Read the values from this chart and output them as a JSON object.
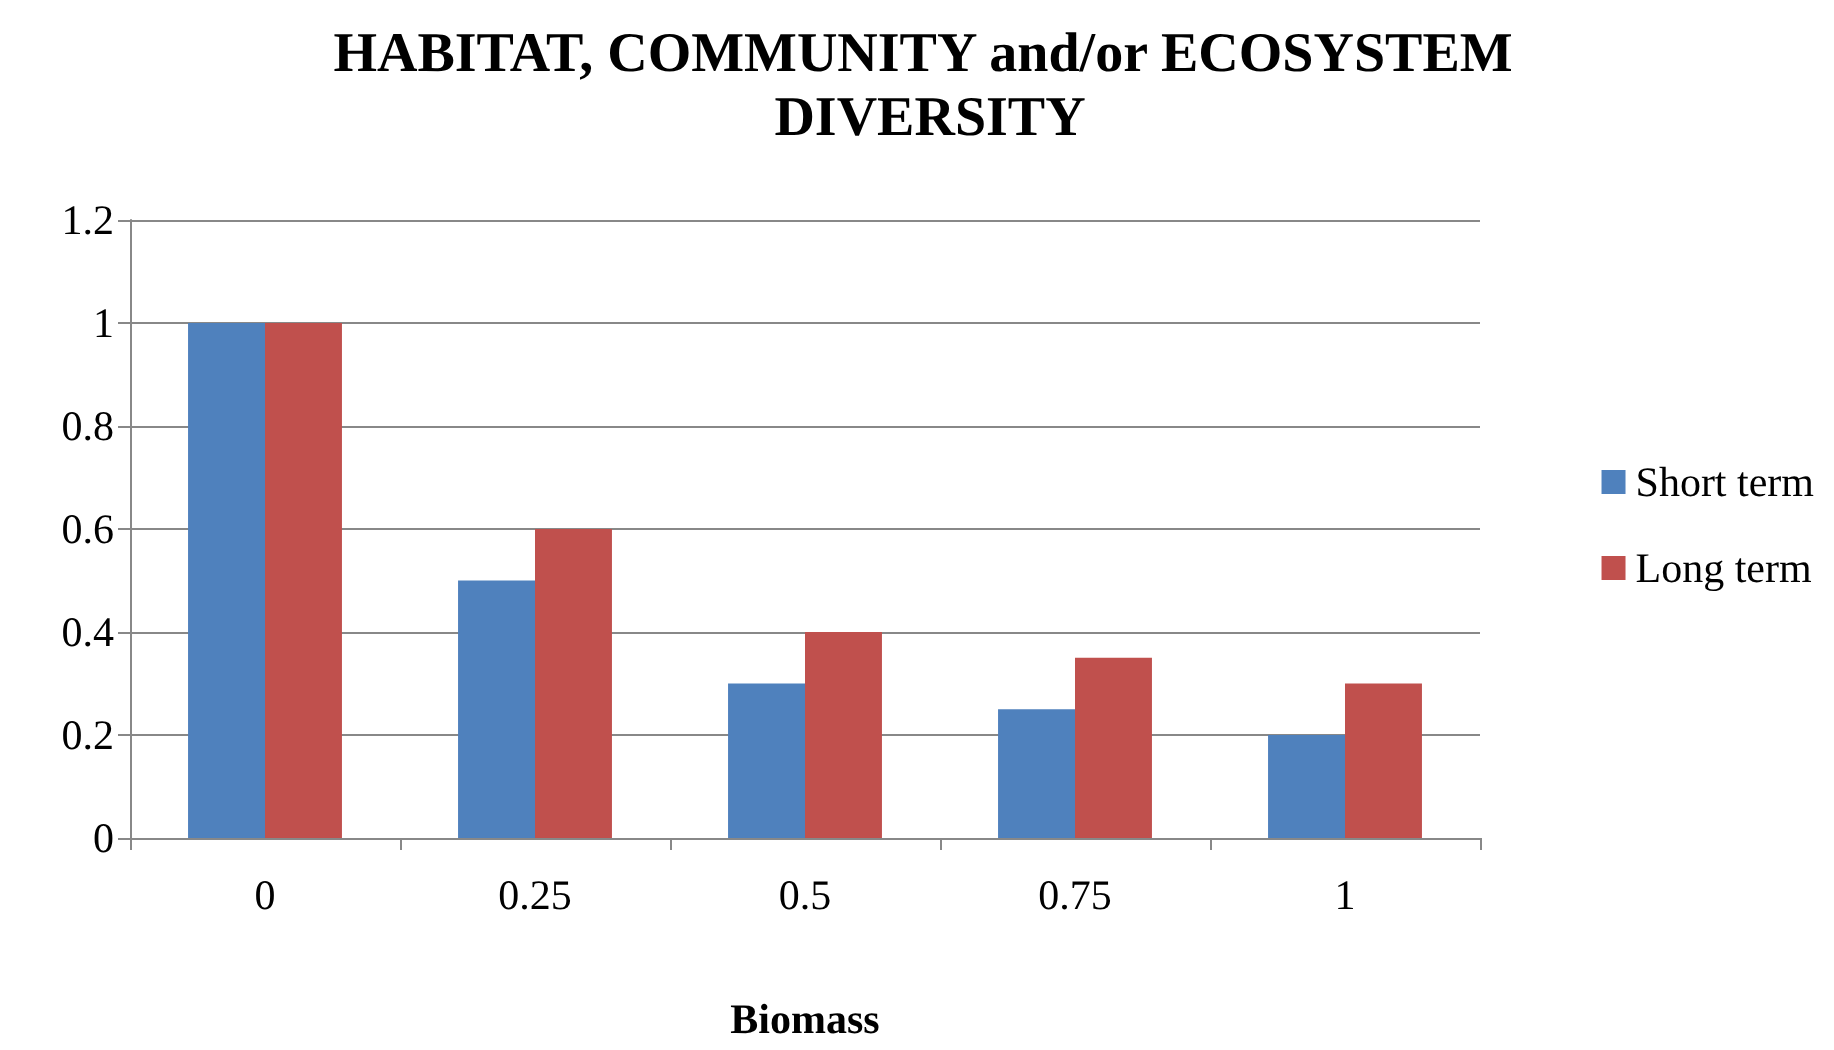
{
  "chart_data": {
    "type": "bar",
    "title": "HABITAT, COMMUNITY and/or ECOSYSTEM DIVERSITY",
    "xlabel": "Biomass",
    "categories": [
      "0",
      "0.25",
      "0.5",
      "0.75",
      "1"
    ],
    "series": [
      {
        "name": "Short term",
        "color": "#4f81bd",
        "values": [
          1,
          0.5,
          0.3,
          0.25,
          0.2
        ]
      },
      {
        "name": "Long term",
        "color": "#c0504d",
        "values": [
          1,
          0.6,
          0.4,
          0.35,
          0.3
        ]
      }
    ],
    "ylim": [
      0,
      1.2
    ],
    "yticks": [
      0,
      0.2,
      0.4,
      0.6,
      0.8,
      1,
      1.2
    ],
    "grid": "y",
    "legend": "right"
  }
}
